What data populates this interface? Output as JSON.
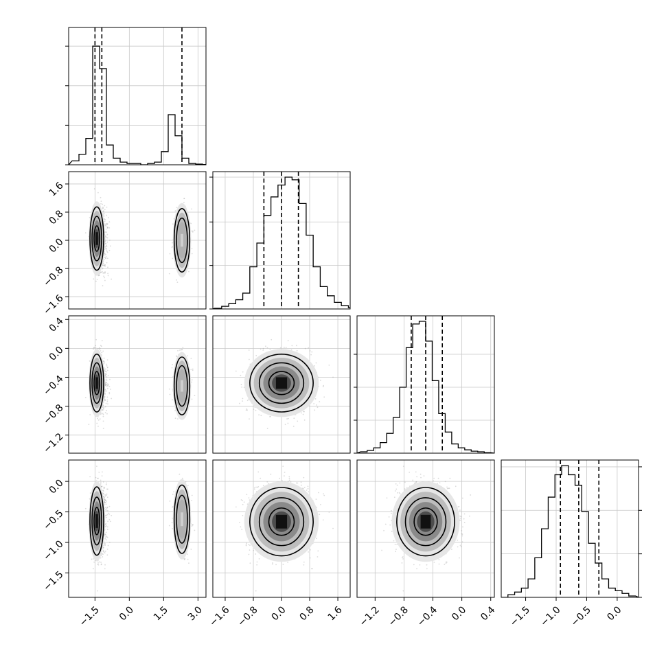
{
  "chart_data": {
    "type": "corner",
    "title": "",
    "grid": true,
    "variables": [
      {
        "range": [
          -2.65,
          3.35
        ],
        "ticks": [
          -1.5,
          0.0,
          1.5,
          3.0
        ],
        "tick_labels": [
          "−1.5",
          "0.0",
          "1.5",
          "3.0"
        ],
        "quantiles": [
          -1.5,
          -1.2,
          2.3
        ],
        "hist": {
          "start": -2.5,
          "width": 0.3,
          "counts": [
            0.03,
            0.08,
            0.2,
            0.9,
            0.73,
            0.15,
            0.05,
            0.02,
            0.01,
            0.01,
            0,
            0.01,
            0.02,
            0.1,
            0.38,
            0.22,
            0.05,
            0.01,
            0.005,
            0.002
          ],
          "y_ticks": [
            0,
            0.3,
            0.6,
            0.9
          ]
        }
      },
      {
        "range": [
          -1.95,
          1.95
        ],
        "ticks": [
          -1.6,
          -0.8,
          0.0,
          0.8,
          1.6
        ],
        "tick_labels": [
          "−1.6",
          "−0.8",
          "0.0",
          "0.8",
          "1.6"
        ],
        "quantiles": [
          -0.5,
          0.0,
          0.48
        ],
        "hist": {
          "start": -1.9,
          "width": 0.2,
          "counts": [
            0.005,
            0.02,
            0.04,
            0.07,
            0.12,
            0.32,
            0.5,
            0.71,
            0.85,
            0.94,
            1.0,
            0.98,
            0.8,
            0.56,
            0.32,
            0.17,
            0.1,
            0.05,
            0.025,
            0.01
          ],
          "y_ticks": [
            0,
            0.33,
            0.66,
            1.0
          ]
        }
      },
      {
        "range": [
          -1.45,
          0.45
        ],
        "ticks": [
          -1.2,
          -0.8,
          -0.4,
          0.0,
          0.4
        ],
        "tick_labels": [
          "−1.2",
          "−0.8",
          "−0.4",
          "0.0",
          "0.4"
        ],
        "quantiles": [
          -0.7,
          -0.5,
          -0.27
        ],
        "hist": {
          "start": -1.4,
          "width": 0.09,
          "counts": [
            0.01,
            0.02,
            0.04,
            0.08,
            0.15,
            0.27,
            0.5,
            0.8,
            0.98,
            1.0,
            0.85,
            0.55,
            0.3,
            0.16,
            0.07,
            0.04,
            0.025,
            0.015,
            0.01,
            0.004
          ],
          "y_ticks": [
            0,
            0.25,
            0.5,
            0.75
          ]
        }
      },
      {
        "range": [
          -1.9,
          0.35
        ],
        "ticks": [
          -1.5,
          -1.0,
          -0.5,
          0.0
        ],
        "tick_labels": [
          "−1.5",
          "−1.0",
          "−0.5",
          "0.0"
        ],
        "quantiles": [
          -0.93,
          -0.63,
          -0.3
        ],
        "hist": {
          "start": -1.9,
          "width": 0.11,
          "counts": [
            0.0,
            0.02,
            0.04,
            0.07,
            0.14,
            0.3,
            0.52,
            0.76,
            0.93,
            1.0,
            0.93,
            0.85,
            0.65,
            0.41,
            0.26,
            0.14,
            0.07,
            0.05,
            0.03,
            0.01
          ],
          "y_ticks": [
            0,
            0.33,
            0.66,
            0.99
          ]
        }
      }
    ],
    "modes": {
      "v1": [
        {
          "mean": -1.3,
          "sd": 0.15,
          "weight": 0.72
        },
        {
          "mean": 2.3,
          "sd": 0.17,
          "weight": 0.28
        }
      ],
      "v2": {
        "mean": 0.0,
        "sd": 0.45
      },
      "v3": {
        "mean": -0.5,
        "sd": 0.2
      },
      "v4": {
        "mean": -0.62,
        "sd": 0.28
      }
    },
    "pair_cores": {
      "2,1": [
        [
          -1.42,
          0.05
        ],
        [
          2.3,
          0.0
        ]
      ],
      "3,1": [
        [
          -1.42,
          -0.48
        ],
        [
          2.3,
          -0.52
        ]
      ],
      "4,1": [
        [
          -1.42,
          -0.65
        ],
        [
          2.3,
          -0.62
        ]
      ],
      "3,2": [
        [
          0.0,
          -0.48
        ]
      ],
      "4,2": [
        [
          0.0,
          -0.66
        ]
      ],
      "4,3": [
        [
          -0.5,
          -0.66
        ]
      ]
    },
    "contour_levels": [
      1.0,
      1.6,
      2.2
    ]
  }
}
